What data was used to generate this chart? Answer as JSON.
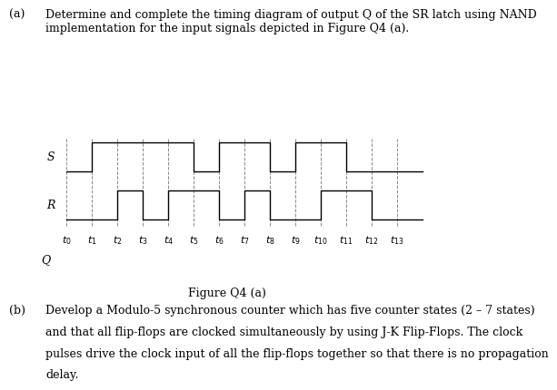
{
  "title_a_prefix": "(a)",
  "title_a_line1": "Determine and complete the timing diagram of output Q of the SR latch using NAND",
  "title_a_line2": "implementation for the input signals depicted in Figure Q4 (a).",
  "figure_label": "Figure Q4 (a)",
  "part_b_prefix": "(b)",
  "part_b_line1": "Develop a Modulo-5 synchronous counter which has five counter states (2 – 7 states)",
  "part_b_line2": "and that all flip-flops are clocked simultaneously by using J-K Flip-Flops. The clock",
  "part_b_line3": "pulses drive the clock input of all the flip-flops together so that there is no propagation",
  "part_b_line4": "delay.",
  "time_points": [
    0,
    1,
    2,
    3,
    4,
    5,
    6,
    7,
    8,
    9,
    10,
    11,
    12,
    13
  ],
  "S_signal": [
    0,
    1,
    1,
    1,
    1,
    0,
    1,
    1,
    0,
    1,
    1,
    0,
    0,
    0
  ],
  "R_signal": [
    0,
    0,
    1,
    0,
    1,
    1,
    0,
    1,
    0,
    0,
    1,
    1,
    0,
    0
  ],
  "signal_color": "#000000",
  "dashed_color": "#888888",
  "background_color": "#ffffff",
  "signal_label_S": "S",
  "signal_label_R": "R",
  "signal_label_Q": "Q",
  "tick_labels": [
    "$t_0$",
    "$t_1$",
    "$t_2$",
    "$t_3$",
    "$t_4$",
    "$t_5$",
    "$t_6$",
    "$t_7$",
    "$t_8$",
    "$t_9$",
    "$t_{10}$",
    "$t_{11}$",
    "$t_{12}$",
    "$t_{13}$"
  ],
  "font_size_body": 9,
  "font_size_label": 9,
  "font_size_tick": 8,
  "font_size_caption": 9,
  "indent_text": 0.08,
  "indent_continuation": 0.13,
  "text_color": "#000000"
}
